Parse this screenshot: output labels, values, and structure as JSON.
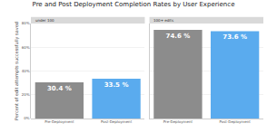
{
  "title": "Pre and Post Deployment Completion Rates by User Experience",
  "chart_data": [
    {
      "type": "bar",
      "title": "under 100",
      "y_label": "Percent of edit attempts successfully saved",
      "categories": [
        "Pre-Deployment",
        "Post-Deployment"
      ],
      "values": [
        30.4,
        33.5
      ],
      "value_labels": [
        "30.4 %",
        "33.5 %"
      ],
      "data_labels": true,
      "colors": [
        "#8c8c8c",
        "#5aabee"
      ],
      "ylim": [
        0,
        80
      ],
      "yticks": [
        {
          "value": 0,
          "label": "0%"
        },
        {
          "value": 20,
          "label": "20%"
        },
        {
          "value": 40,
          "label": "40%"
        },
        {
          "value": 60,
          "label": "60%"
        },
        {
          "value": 80,
          "label": "80%"
        }
      ],
      "grid": true
    },
    {
      "type": "bar",
      "title": "100+ edits",
      "categories": [
        "Pre-Deployment",
        "Post-Deployment"
      ],
      "values": [
        74.6,
        73.6
      ],
      "value_labels": [
        "74.6 %",
        "73.6 %"
      ],
      "data_labels": true,
      "colors": [
        "#8c8c8c",
        "#5aabee"
      ],
      "ylim": [
        0,
        80
      ],
      "yticks": [
        {
          "value": 0,
          "label": "0%"
        },
        {
          "value": 20,
          "label": "20%"
        },
        {
          "value": 40,
          "label": "40%"
        },
        {
          "value": 60,
          "label": "60%"
        },
        {
          "value": 80,
          "label": "80%"
        }
      ],
      "grid": true,
      "tick_labels": "x"
    }
  ]
}
